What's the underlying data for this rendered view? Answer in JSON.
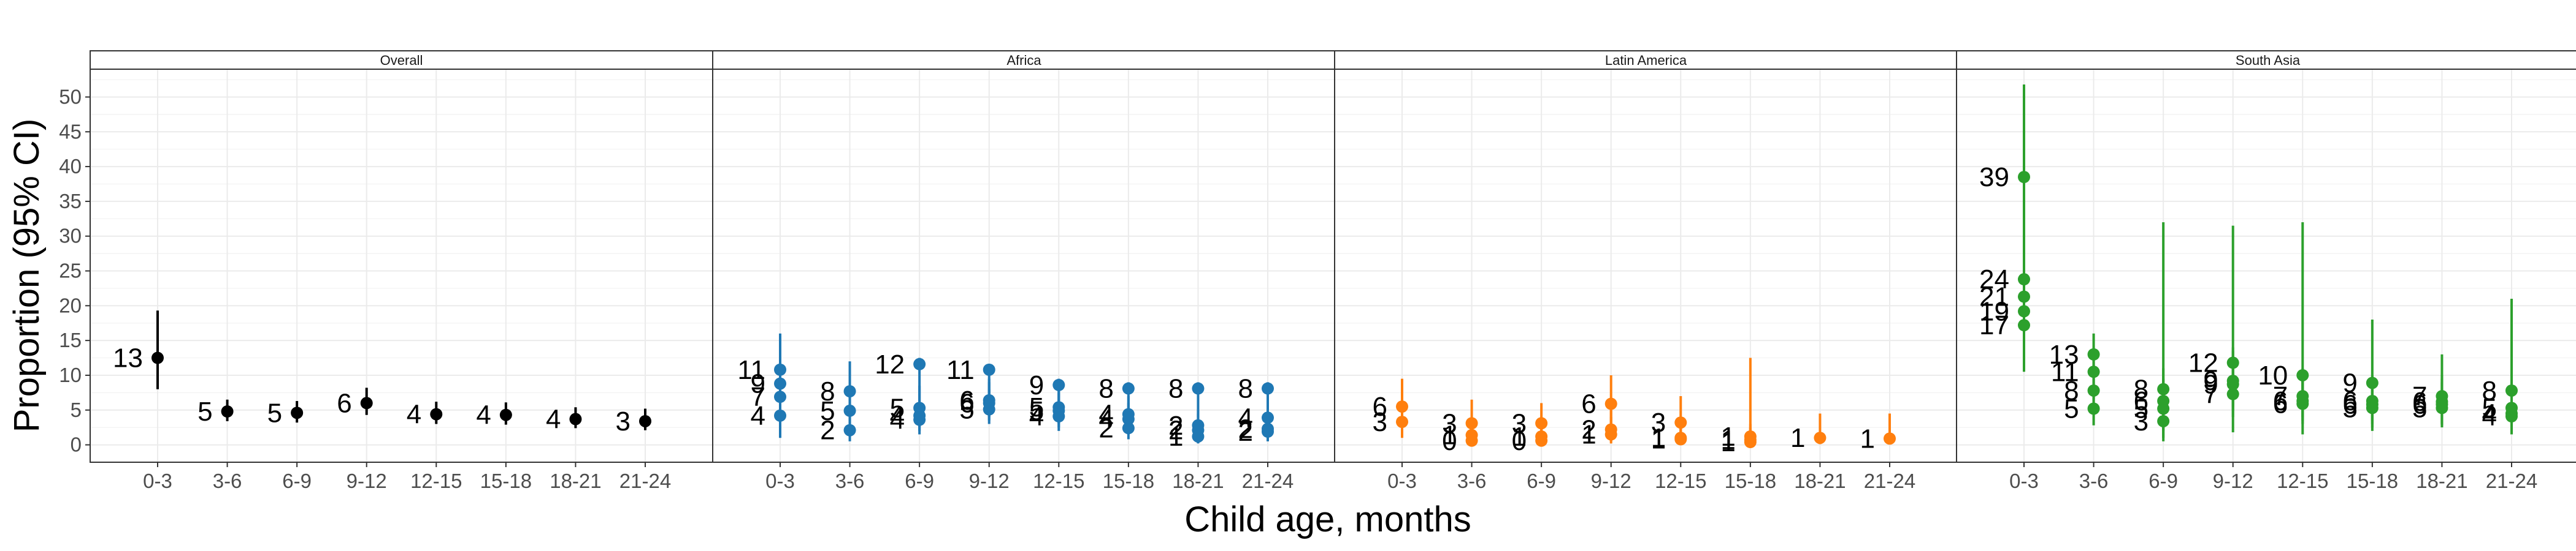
{
  "chart_data": {
    "type": "scatter",
    "xlabel": "Child age, months",
    "ylabel": "Proportion (95% CI)",
    "ylim": [
      -2.5,
      54
    ],
    "yticks": [
      0,
      5,
      10,
      15,
      20,
      25,
      30,
      35,
      40,
      45,
      50
    ],
    "categories": [
      "0-3",
      "3-6",
      "6-9",
      "9-12",
      "12-15",
      "15-18",
      "18-21",
      "21-24"
    ],
    "grid": true,
    "panels": [
      {
        "title": "Overall",
        "color": "#000000",
        "groups": [
          {
            "x": "0-3",
            "points": [
              {
                "label": "13",
                "y": 12.5,
                "lo": 8.0,
                "hi": 19.3
              }
            ]
          },
          {
            "x": "3-6",
            "points": [
              {
                "label": "5",
                "y": 4.8,
                "lo": 3.4,
                "hi": 6.5
              }
            ]
          },
          {
            "x": "6-9",
            "points": [
              {
                "label": "5",
                "y": 4.6,
                "lo": 3.2,
                "hi": 6.3
              }
            ]
          },
          {
            "x": "9-12",
            "points": [
              {
                "label": "6",
                "y": 6.0,
                "lo": 4.3,
                "hi": 8.2
              }
            ]
          },
          {
            "x": "12-15",
            "points": [
              {
                "label": "4",
                "y": 4.4,
                "lo": 3.0,
                "hi": 6.2
              }
            ]
          },
          {
            "x": "15-18",
            "points": [
              {
                "label": "4",
                "y": 4.3,
                "lo": 2.9,
                "hi": 6.1
              }
            ]
          },
          {
            "x": "18-21",
            "points": [
              {
                "label": "4",
                "y": 3.7,
                "lo": 2.4,
                "hi": 5.4
              }
            ]
          },
          {
            "x": "21-24",
            "points": [
              {
                "label": "3",
                "y": 3.4,
                "lo": 2.1,
                "hi": 5.2
              }
            ]
          }
        ]
      },
      {
        "title": "Africa",
        "color": "#1f78b4",
        "groups": [
          {
            "x": "0-3",
            "points": [
              {
                "label": "11",
                "y": 10.8,
                "lo": 5.5,
                "hi": 16.0
              },
              {
                "label": "9",
                "y": 8.8,
                "lo": 3.5,
                "hi": 13.5
              },
              {
                "label": "7",
                "y": 6.9,
                "lo": 2.5,
                "hi": 11.5
              },
              {
                "label": "4",
                "y": 4.2,
                "lo": 1.0,
                "hi": 8.5
              }
            ]
          },
          {
            "x": "3-6",
            "points": [
              {
                "label": "8",
                "y": 7.7,
                "lo": 4.0,
                "hi": 12.0
              },
              {
                "label": "5",
                "y": 4.9,
                "lo": 2.0,
                "hi": 8.5
              },
              {
                "label": "2",
                "y": 2.1,
                "lo": 0.5,
                "hi": 5.0
              }
            ]
          },
          {
            "x": "6-9",
            "points": [
              {
                "label": "12",
                "y": 11.6,
                "lo": 7.0,
                "hi": 12.5
              },
              {
                "label": "5",
                "y": 5.3,
                "lo": 2.5,
                "hi": 8.5
              },
              {
                "label": "4",
                "y": 4.2,
                "lo": 2.0,
                "hi": 7.0
              },
              {
                "label": "4",
                "y": 3.6,
                "lo": 1.5,
                "hi": 6.0
              }
            ]
          },
          {
            "x": "9-12",
            "points": [
              {
                "label": "11",
                "y": 10.8,
                "lo": 7.5,
                "hi": 11.5
              },
              {
                "label": "6",
                "y": 6.4,
                "lo": 4.0,
                "hi": 9.5
              },
              {
                "label": "6",
                "y": 6.0,
                "lo": 3.5,
                "hi": 9.0
              },
              {
                "label": "5",
                "y": 5.1,
                "lo": 3.0,
                "hi": 8.0
              }
            ]
          },
          {
            "x": "12-15",
            "points": [
              {
                "label": "9",
                "y": 8.6,
                "lo": 5.0,
                "hi": 9.5
              },
              {
                "label": "5",
                "y": 5.4,
                "lo": 3.0,
                "hi": 8.0
              },
              {
                "label": "5",
                "y": 4.9,
                "lo": 2.5,
                "hi": 7.5
              },
              {
                "label": "4",
                "y": 4.1,
                "lo": 2.0,
                "hi": 6.5
              }
            ]
          },
          {
            "x": "15-18",
            "points": [
              {
                "label": "8",
                "y": 8.1,
                "lo": 4.0,
                "hi": 9.0
              },
              {
                "label": "4",
                "y": 4.4,
                "lo": 2.0,
                "hi": 7.0
              },
              {
                "label": "4",
                "y": 3.7,
                "lo": 1.5,
                "hi": 6.0
              },
              {
                "label": "2",
                "y": 2.4,
                "lo": 0.8,
                "hi": 4.5
              }
            ]
          },
          {
            "x": "18-21",
            "points": [
              {
                "label": "8",
                "y": 8.1,
                "lo": 4.0,
                "hi": 9.0
              },
              {
                "label": "2",
                "y": 2.8,
                "lo": 0.8,
                "hi": 5.0
              },
              {
                "label": "2",
                "y": 2.1,
                "lo": 0.5,
                "hi": 4.5
              },
              {
                "label": "1",
                "y": 1.2,
                "lo": 0.2,
                "hi": 3.0
              }
            ]
          },
          {
            "x": "21-24",
            "points": [
              {
                "label": "8",
                "y": 8.1,
                "lo": 4.0,
                "hi": 9.0
              },
              {
                "label": "4",
                "y": 3.9,
                "lo": 1.5,
                "hi": 6.5
              },
              {
                "label": "2",
                "y": 2.3,
                "lo": 0.6,
                "hi": 4.5
              },
              {
                "label": "2",
                "y": 1.9,
                "lo": 0.5,
                "hi": 4.0
              }
            ]
          }
        ]
      },
      {
        "title": "Latin America",
        "color": "#ff7f0e",
        "groups": [
          {
            "x": "0-3",
            "points": [
              {
                "label": "6",
                "y": 5.5,
                "lo": 2.5,
                "hi": 9.5
              },
              {
                "label": "3",
                "y": 3.3,
                "lo": 1.0,
                "hi": 7.0
              }
            ]
          },
          {
            "x": "3-6",
            "points": [
              {
                "label": "3",
                "y": 3.1,
                "lo": 1.0,
                "hi": 6.5
              },
              {
                "label": "1",
                "y": 1.4,
                "lo": 0.2,
                "hi": 4.0
              },
              {
                "label": "0",
                "y": 0.6,
                "lo": 0.0,
                "hi": 3.0
              }
            ]
          },
          {
            "x": "6-9",
            "points": [
              {
                "label": "3",
                "y": 3.1,
                "lo": 1.0,
                "hi": 6.0
              },
              {
                "label": "1",
                "y": 1.2,
                "lo": 0.2,
                "hi": 4.0
              },
              {
                "label": "0",
                "y": 0.6,
                "lo": 0.0,
                "hi": 3.0
              }
            ]
          },
          {
            "x": "9-12",
            "points": [
              {
                "label": "6",
                "y": 5.9,
                "lo": 3.0,
                "hi": 10.0
              },
              {
                "label": "2",
                "y": 2.2,
                "lo": 0.5,
                "hi": 5.0
              },
              {
                "label": "1",
                "y": 1.5,
                "lo": 0.2,
                "hi": 4.0
              }
            ]
          },
          {
            "x": "12-15",
            "points": [
              {
                "label": "3",
                "y": 3.2,
                "lo": 1.0,
                "hi": 7.0
              },
              {
                "label": "1",
                "y": 1.0,
                "lo": 0.1,
                "hi": 3.5
              },
              {
                "label": "1",
                "y": 0.8,
                "lo": 0.0,
                "hi": 3.0
              }
            ]
          },
          {
            "x": "15-18",
            "points": [
              {
                "label": "1",
                "y": 1.2,
                "lo": 0.0,
                "hi": 12.5
              },
              {
                "label": "1",
                "y": 0.7,
                "lo": 0.0,
                "hi": 3.0
              },
              {
                "label": "1",
                "y": 0.4,
                "lo": 0.0,
                "hi": 2.5
              }
            ]
          },
          {
            "x": "18-21",
            "points": [
              {
                "label": "1",
                "y": 1.0,
                "lo": 0.1,
                "hi": 4.5
              }
            ]
          },
          {
            "x": "21-24",
            "points": [
              {
                "label": "1",
                "y": 0.9,
                "lo": 0.1,
                "hi": 4.5
              }
            ]
          }
        ]
      },
      {
        "title": "South Asia",
        "color": "#2ca02c",
        "groups": [
          {
            "x": "0-3",
            "points": [
              {
                "label": "39",
                "y": 38.5,
                "lo": 28.0,
                "hi": 51.8
              },
              {
                "label": "24",
                "y": 23.8,
                "lo": 14.0,
                "hi": 36.0
              },
              {
                "label": "21",
                "y": 21.3,
                "lo": 13.0,
                "hi": 31.0
              },
              {
                "label": "19",
                "y": 19.2,
                "lo": 12.0,
                "hi": 28.0
              },
              {
                "label": "17",
                "y": 17.2,
                "lo": 10.5,
                "hi": 25.0
              }
            ]
          },
          {
            "x": "3-6",
            "points": [
              {
                "label": "13",
                "y": 13.0,
                "lo": 8.0,
                "hi": 16.0
              },
              {
                "label": "11",
                "y": 10.5,
                "lo": 6.5,
                "hi": 14.0
              },
              {
                "label": "8",
                "y": 7.8,
                "lo": 4.5,
                "hi": 11.5
              },
              {
                "label": "5",
                "y": 5.2,
                "lo": 2.8,
                "hi": 8.5
              }
            ]
          },
          {
            "x": "6-9",
            "points": [
              {
                "label": "8",
                "y": 8.0,
                "lo": 0.5,
                "hi": 32.0
              },
              {
                "label": "6",
                "y": 6.3,
                "lo": 2.5,
                "hi": 11.0
              },
              {
                "label": "5",
                "y": 5.2,
                "lo": 2.0,
                "hi": 9.5
              },
              {
                "label": "3",
                "y": 3.4,
                "lo": 1.0,
                "hi": 7.0
              }
            ]
          },
          {
            "x": "9-12",
            "points": [
              {
                "label": "12",
                "y": 11.8,
                "lo": 1.8,
                "hi": 31.5
              },
              {
                "label": "9",
                "y": 9.2,
                "lo": 5.5,
                "hi": 14.0
              },
              {
                "label": "9",
                "y": 8.7,
                "lo": 5.0,
                "hi": 13.5
              },
              {
                "label": "7",
                "y": 7.3,
                "lo": 4.0,
                "hi": 11.5
              }
            ]
          },
          {
            "x": "12-15",
            "points": [
              {
                "label": "10",
                "y": 10.0,
                "lo": 1.5,
                "hi": 32.0
              },
              {
                "label": "7",
                "y": 7.0,
                "lo": 4.0,
                "hi": 11.0
              },
              {
                "label": "6",
                "y": 6.3,
                "lo": 3.5,
                "hi": 10.0
              },
              {
                "label": "6",
                "y": 5.9,
                "lo": 3.0,
                "hi": 9.5
              }
            ]
          },
          {
            "x": "15-18",
            "points": [
              {
                "label": "9",
                "y": 8.9,
                "lo": 2.0,
                "hi": 18.0
              },
              {
                "label": "6",
                "y": 6.3,
                "lo": 3.5,
                "hi": 10.0
              },
              {
                "label": "6",
                "y": 5.8,
                "lo": 3.0,
                "hi": 9.5
              },
              {
                "label": "5",
                "y": 5.3,
                "lo": 2.5,
                "hi": 9.0
              }
            ]
          },
          {
            "x": "18-21",
            "points": [
              {
                "label": "7",
                "y": 7.0,
                "lo": 3.0,
                "hi": 13.0
              },
              {
                "label": "6",
                "y": 6.2,
                "lo": 3.0,
                "hi": 10.0
              },
              {
                "label": "6",
                "y": 5.8,
                "lo": 2.8,
                "hi": 9.5
              },
              {
                "label": "5",
                "y": 5.3,
                "lo": 2.5,
                "hi": 9.0
              }
            ]
          },
          {
            "x": "21-24",
            "points": [
              {
                "label": "8",
                "y": 7.8,
                "lo": 1.5,
                "hi": 21.0
              },
              {
                "label": "5",
                "y": 5.3,
                "lo": 2.5,
                "hi": 9.0
              },
              {
                "label": "4",
                "y": 4.5,
                "lo": 2.0,
                "hi": 8.0
              },
              {
                "label": "4",
                "y": 4.1,
                "lo": 1.5,
                "hi": 7.5
              }
            ]
          }
        ]
      }
    ]
  }
}
